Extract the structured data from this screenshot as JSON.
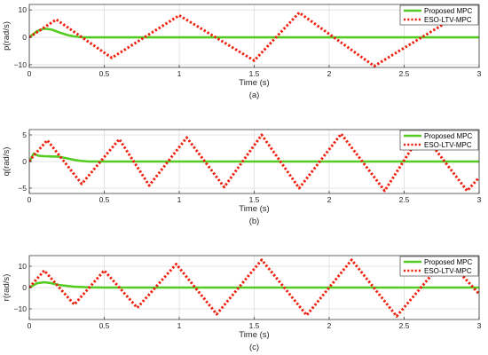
{
  "colors": {
    "proposed": "#55cc22",
    "eso": "#ee2211",
    "grid": "#dedede",
    "axis": "#262626"
  },
  "chart_data": [
    {
      "type": "line",
      "caption": "(a)",
      "xlabel": "Time (s)",
      "ylabel": "p(rad/s)",
      "xlim": [
        0,
        3
      ],
      "ylim": [
        -11,
        12
      ],
      "xticks": [
        0,
        0.5,
        1,
        1.5,
        2,
        2.5,
        3
      ],
      "yticks": [
        -10,
        0,
        10
      ],
      "grid": true,
      "legend": "top-right",
      "series": [
        {
          "name": "Proposed MPC",
          "style": "solid",
          "x": [
            0,
            0.05,
            0.1,
            0.15,
            0.2,
            0.25,
            0.3,
            0.35,
            0.4,
            0.5,
            1,
            2,
            3
          ],
          "y": [
            0,
            2.2,
            3.2,
            2.8,
            1.8,
            0.9,
            0.3,
            0.05,
            0,
            0,
            0,
            0,
            0
          ]
        },
        {
          "name": "ESO-LTV-MPC",
          "style": "dotted",
          "x": [
            0,
            0.18,
            0.55,
            1.0,
            1.5,
            1.8,
            2.3,
            2.95,
            3.0
          ],
          "y": [
            0,
            6.5,
            -7.5,
            8,
            -8.5,
            9,
            -10.5,
            11,
            10
          ]
        }
      ]
    },
    {
      "type": "line",
      "caption": "(b)",
      "xlabel": "Time (s)",
      "ylabel": "q(rad/s)",
      "xlim": [
        0,
        3
      ],
      "ylim": [
        -6,
        6
      ],
      "xticks": [
        0,
        0.5,
        1,
        1.5,
        2,
        2.5,
        3
      ],
      "yticks": [
        -5,
        0,
        5
      ],
      "grid": true,
      "legend": "top-right",
      "series": [
        {
          "name": "Proposed MPC",
          "style": "solid",
          "x": [
            0,
            0.03,
            0.06,
            0.1,
            0.2,
            0.25,
            0.3,
            0.35,
            0.4,
            0.5,
            1,
            2,
            3
          ],
          "y": [
            0,
            1.5,
            1.1,
            1.0,
            0.9,
            0.6,
            0.3,
            0.1,
            0,
            0,
            0,
            0,
            0
          ]
        },
        {
          "name": "ESO-LTV-MPC",
          "style": "dotted",
          "x": [
            0,
            0.02,
            0.12,
            0.35,
            0.6,
            0.8,
            1.05,
            1.3,
            1.55,
            1.8,
            2.08,
            2.37,
            2.62,
            2.92,
            3.0
          ],
          "y": [
            0,
            0.8,
            4,
            -4.2,
            4.2,
            -4.5,
            4.5,
            -4.8,
            5,
            -5,
            5.2,
            -5.5,
            5.5,
            -5.5,
            -3
          ]
        }
      ]
    },
    {
      "type": "line",
      "caption": "(c)",
      "xlabel": "Time (s)",
      "ylabel": "r(rad/s)",
      "xlim": [
        0,
        3
      ],
      "ylim": [
        -15,
        15
      ],
      "xticks": [
        0,
        0.5,
        1,
        1.5,
        2,
        2.5,
        3
      ],
      "yticks": [
        -10,
        0,
        10
      ],
      "grid": true,
      "legend": "top-right",
      "series": [
        {
          "name": "Proposed MPC",
          "style": "solid",
          "x": [
            0,
            0.05,
            0.1,
            0.15,
            0.2,
            0.3,
            0.4,
            0.5,
            1,
            2,
            3
          ],
          "y": [
            0,
            2,
            2.5,
            2,
            1.2,
            0.4,
            0.1,
            0,
            0,
            0,
            0
          ]
        },
        {
          "name": "ESO-LTV-MPC",
          "style": "dotted",
          "x": [
            0,
            0.1,
            0.3,
            0.5,
            0.72,
            0.98,
            1.25,
            1.55,
            1.85,
            2.15,
            2.45,
            2.78,
            3.0
          ],
          "y": [
            0,
            8,
            -8,
            8,
            -9.5,
            11,
            -12.5,
            13,
            -13,
            13,
            -13.5,
            14,
            -3
          ]
        }
      ]
    }
  ]
}
